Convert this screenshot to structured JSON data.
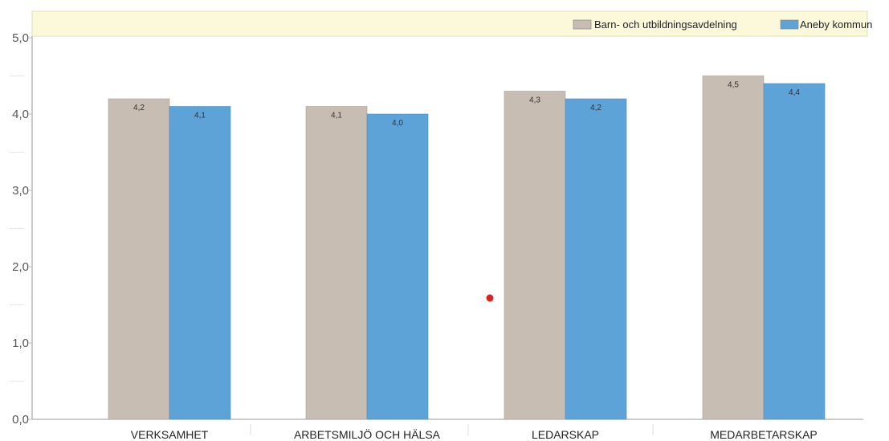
{
  "chart_data": {
    "type": "bar",
    "title": "",
    "xlabel": "",
    "ylabel": "",
    "ylim": [
      0,
      5
    ],
    "yticks": [
      "0,0",
      "1,0",
      "2,0",
      "3,0",
      "4,0",
      "5,0"
    ],
    "categories": [
      "VERKSAMHET",
      "ARBETSMILJÖ OCH HÄLSA",
      "LEDARSKAP",
      "MEDARBETARSKAP"
    ],
    "series": [
      {
        "name": "Barn- och utbildningsavdelning",
        "values": [
          4.2,
          4.1,
          4.3,
          4.5
        ],
        "labels": [
          "4,2",
          "4,1",
          "4,3",
          "4,5"
        ],
        "color": "#c8bdb3"
      },
      {
        "name": "Aneby kommun",
        "values": [
          4.1,
          4.0,
          4.2,
          4.4
        ],
        "labels": [
          "4,1",
          "4,0",
          "4,2",
          "4,4"
        ],
        "color": "#5ea3d8"
      }
    ],
    "legend": {
      "position": "top-right",
      "background": "#fbf9d9"
    },
    "grid": false,
    "annotation_dot_color": "#e02020"
  }
}
